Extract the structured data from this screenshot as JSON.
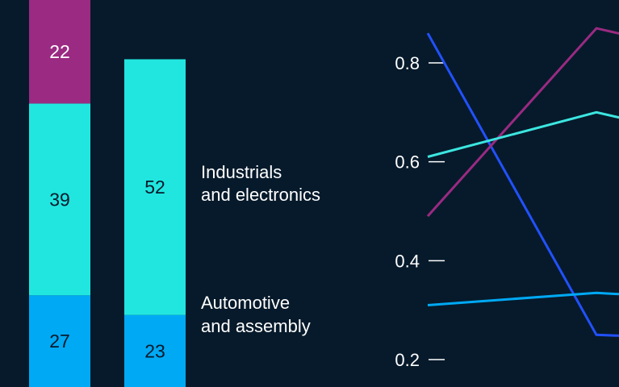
{
  "chart_data": [
    {
      "type": "bar",
      "stacked": true,
      "categories": [
        "",
        ""
      ],
      "series": [
        {
          "name": "Automotive and assembly",
          "values": [
            27,
            23
          ],
          "color": "#00a9f4"
        },
        {
          "name": "Industrials and electronics",
          "values": [
            39,
            52
          ],
          "color": "#21e6df"
        },
        {
          "name": "",
          "values": [
            22,
            null
          ],
          "color": "#9a2a82"
        }
      ],
      "series_labels": [
        {
          "line1": "Automotive",
          "line2": "and assembly"
        },
        {
          "line1": "Industrials",
          "line2": "and electronics"
        }
      ]
    },
    {
      "type": "line",
      "ylim": [
        0.2,
        0.87
      ],
      "yticks": [
        "0.8",
        "0.6",
        "0.4",
        "0.2"
      ],
      "x": [
        0,
        1,
        2
      ],
      "series": [
        {
          "color": "#2251ff",
          "values": [
            0.86,
            0.25,
            0.24
          ]
        },
        {
          "color": "#9a2a82",
          "values": [
            0.49,
            0.87,
            0.81
          ]
        },
        {
          "color": "#3ce6e0",
          "values": [
            0.61,
            0.7,
            0.64
          ]
        },
        {
          "color": "#00a9f4",
          "values": [
            0.31,
            0.335,
            0.32
          ]
        }
      ]
    }
  ]
}
